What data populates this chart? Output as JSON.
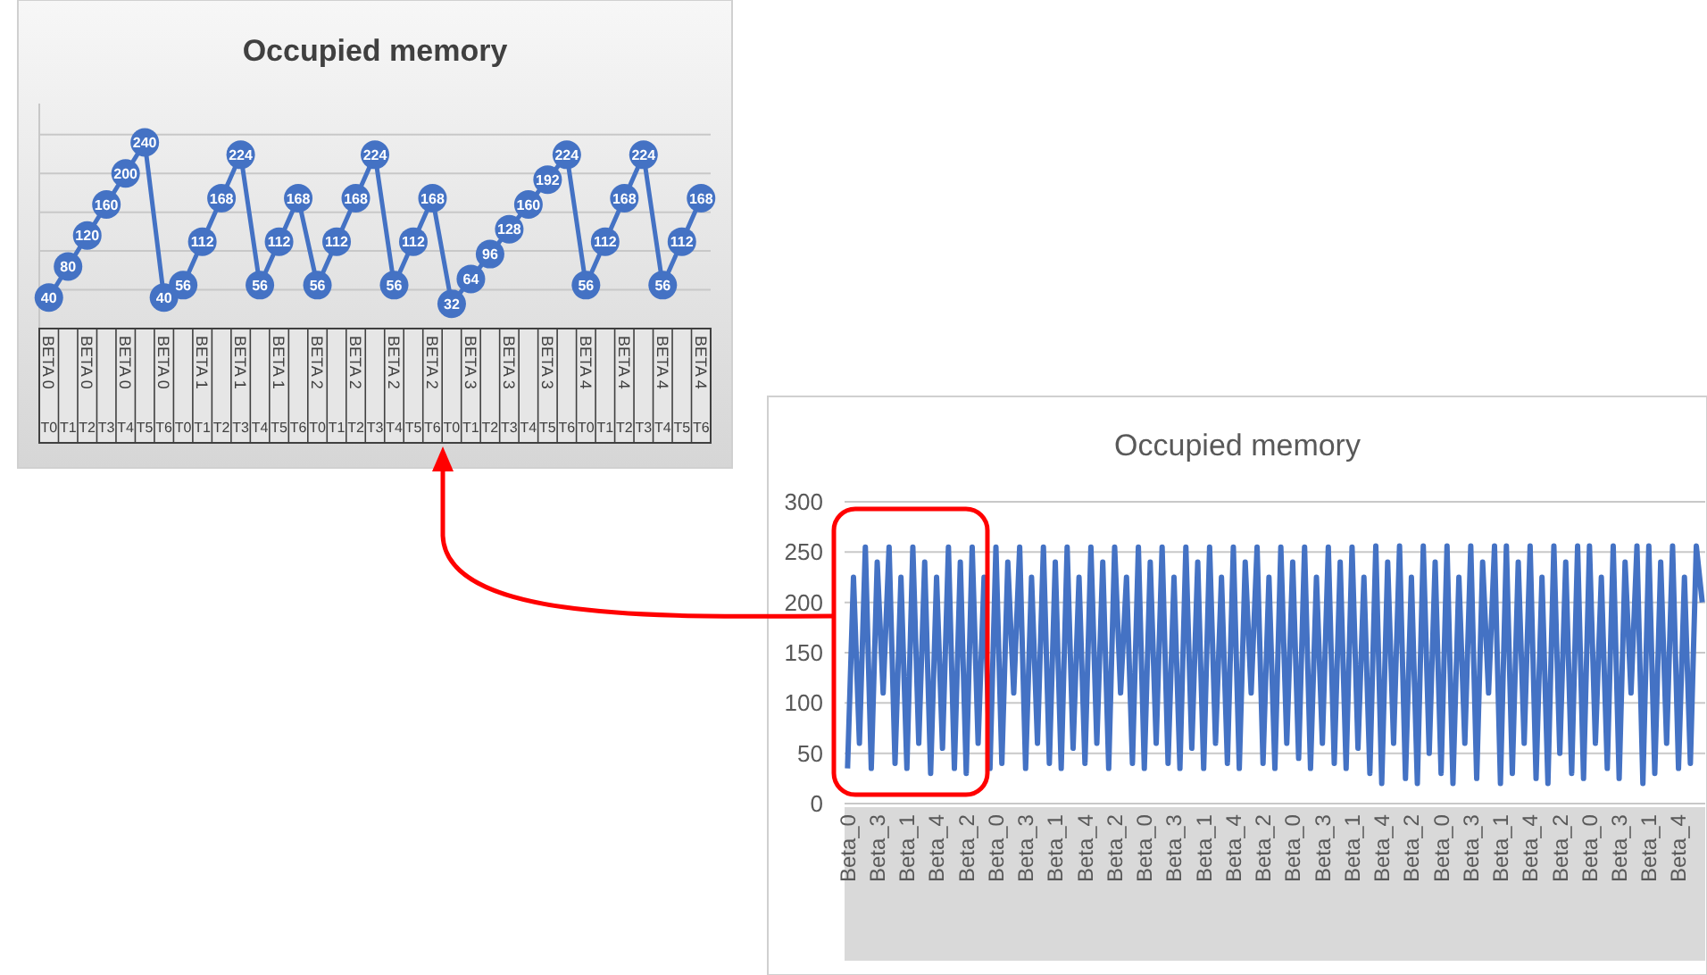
{
  "chart_data": [
    {
      "type": "line",
      "title": "Occupied memory",
      "categories": [
        "BETA 0 T0",
        "T1",
        "BETA 0 T2",
        "T3",
        "BETA 0 T4",
        "T5",
        "BETA 0 T6",
        "T0",
        "BETA 1 T1",
        "T2",
        "BETA 1 T3",
        "T4",
        "BETA 1 T5",
        "T6",
        "BETA 2 T0",
        "T1",
        "BETA 2 T2",
        "T3",
        "BETA 2 T4",
        "T5",
        "BETA 2 T6",
        "T0",
        "BETA 3 T1",
        "T2",
        "BETA 3 T3",
        "T4",
        "BETA 3 T5",
        "T6",
        "BETA 4 T0",
        "T1",
        "BETA 4 T2",
        "T3",
        "BETA 4 T4",
        "T5",
        "BETA 4 T6"
      ],
      "values": [
        40,
        80,
        120,
        160,
        200,
        240,
        40,
        56,
        112,
        168,
        224,
        56,
        112,
        168,
        56,
        112,
        168,
        224,
        56,
        112,
        168,
        32,
        64,
        96,
        128,
        160,
        192,
        224,
        56,
        112,
        168,
        224,
        56,
        112,
        168
      ],
      "color": "#4472c4",
      "marker": "circle",
      "data_labels": true,
      "grid": "y",
      "ylim": [
        0,
        290
      ],
      "yticks": [
        {
          "value": 50,
          "label": null
        },
        {
          "value": 100,
          "label": null
        },
        {
          "value": 150,
          "label": null
        },
        {
          "value": 200,
          "label": null
        },
        {
          "value": 250,
          "label": null
        }
      ],
      "tick_labels": "x"
    },
    {
      "type": "line",
      "title": "Occupied memory",
      "categories": [
        "Beta_0",
        null,
        null,
        null,
        null,
        "Beta_3",
        null,
        null,
        null,
        null,
        "Beta_1",
        null,
        null,
        null,
        null,
        "Beta_4",
        null,
        null,
        null,
        null,
        "Beta_2",
        null,
        null,
        null,
        null,
        "Beta_0",
        null,
        null,
        null,
        null,
        "Beta_3",
        null,
        null,
        null,
        null,
        "Beta_1",
        null,
        null,
        null,
        null,
        "Beta_4",
        null,
        null,
        null,
        null,
        "Beta_2",
        null,
        null,
        null,
        null,
        "Beta_0",
        null,
        null,
        null,
        null,
        "Beta_3",
        null,
        null,
        null,
        null,
        "Beta_1",
        null,
        null,
        null,
        null,
        "Beta_4",
        null,
        null,
        null,
        null,
        "Beta_2",
        null,
        null,
        null,
        null,
        "Beta_0",
        null,
        null,
        null,
        null,
        "Beta_3",
        null,
        null,
        null,
        null,
        "Beta_1",
        null,
        null,
        null,
        null,
        "Beta_4",
        null,
        null,
        null,
        null,
        "Beta_2",
        null,
        null,
        null,
        null,
        "Beta_0",
        null,
        null,
        null,
        null,
        "Beta_3",
        null,
        null,
        null,
        null,
        "Beta_1",
        null,
        null,
        null,
        null,
        "Beta_4",
        null,
        null,
        null,
        null,
        "Beta_2",
        null,
        null,
        null,
        null,
        "Beta_0",
        null,
        null,
        null,
        null,
        "Beta_3",
        null,
        null,
        null,
        null,
        "Beta_1",
        null,
        null,
        null,
        null,
        "Beta_4",
        null,
        null,
        null,
        null
      ],
      "values": [
        35,
        225,
        60,
        255,
        35,
        240,
        110,
        255,
        40,
        225,
        35,
        255,
        60,
        240,
        30,
        225,
        55,
        255,
        35,
        240,
        30,
        255,
        60,
        225,
        35,
        255,
        40,
        240,
        110,
        255,
        35,
        225,
        60,
        255,
        40,
        240,
        35,
        255,
        55,
        225,
        40,
        255,
        60,
        240,
        35,
        255,
        110,
        225,
        40,
        255,
        35,
        240,
        60,
        255,
        40,
        225,
        35,
        255,
        55,
        240,
        35,
        255,
        60,
        225,
        40,
        255,
        35,
        240,
        110,
        255,
        40,
        225,
        35,
        255,
        60,
        240,
        45,
        255,
        35,
        225,
        60,
        255,
        40,
        240,
        35,
        255,
        55,
        225,
        30,
        256,
        20,
        240,
        60,
        256,
        25,
        225,
        20,
        256,
        50,
        240,
        30,
        256,
        20,
        225,
        60,
        256,
        25,
        240,
        110,
        256,
        20,
        256,
        30,
        240,
        60,
        256,
        25,
        225,
        20,
        256,
        50,
        240,
        30,
        256,
        25,
        256,
        60,
        225,
        35,
        256,
        25,
        240,
        110,
        256,
        20,
        256,
        30,
        240,
        60,
        256,
        35,
        225,
        40,
        256,
        200
      ],
      "color": "#4472c4",
      "marker": "none",
      "line_style": "solid",
      "grid": "y",
      "ylim": [
        0,
        300
      ],
      "yticks": [
        0,
        50,
        100,
        150,
        200,
        250,
        300
      ]
    }
  ]
}
